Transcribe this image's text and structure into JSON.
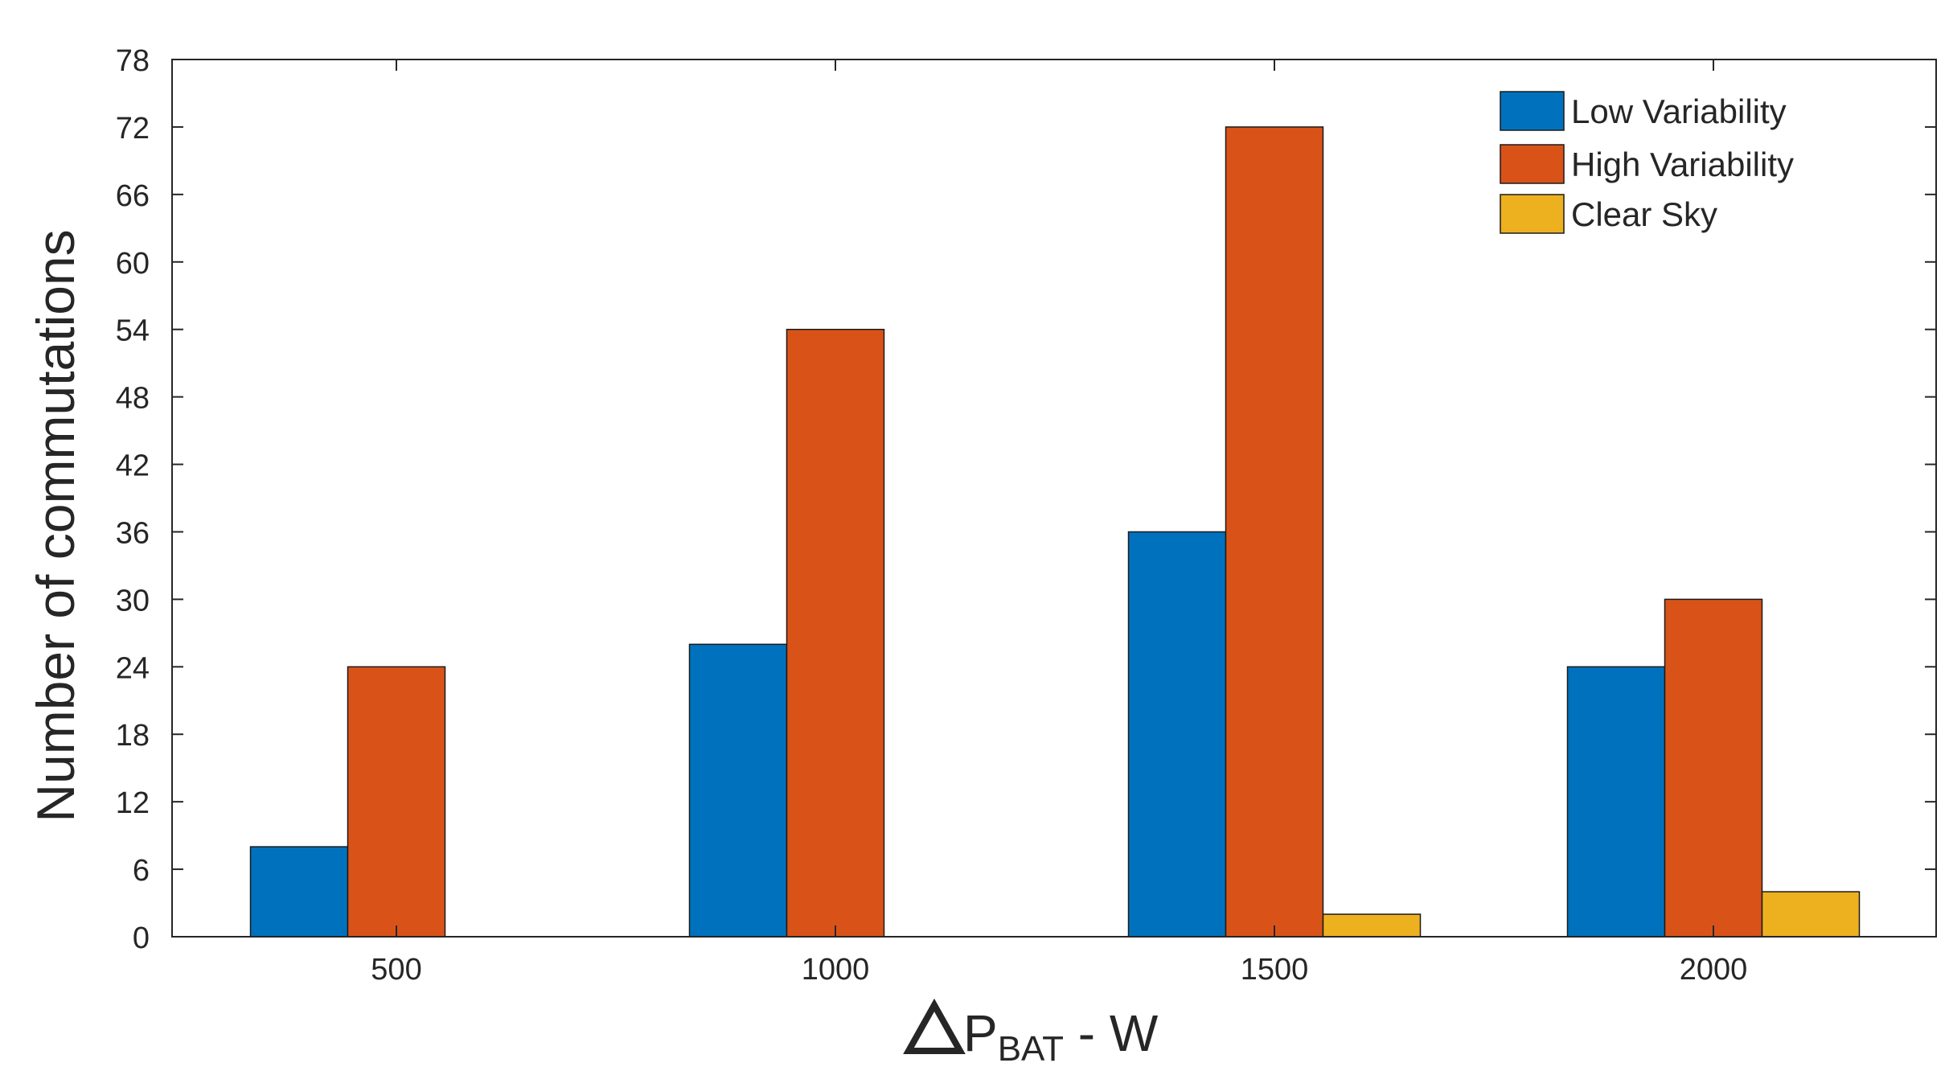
{
  "chart_data": {
    "type": "bar",
    "categories": [
      "500",
      "1000",
      "1500",
      "2000"
    ],
    "series": [
      {
        "name": "Low Variability",
        "values": [
          8,
          26,
          36,
          24
        ],
        "color": "#0072BD"
      },
      {
        "name": "High Variability",
        "values": [
          24,
          54,
          72,
          30
        ],
        "color": "#D95319"
      },
      {
        "name": "Clear Sky",
        "values": [
          0,
          0,
          2,
          4
        ],
        "color": "#EDB120"
      }
    ],
    "ylabel": "Number of commutations",
    "xlabel": {
      "prefix": "P",
      "subscript": "BAT",
      "suffix": " - W"
    },
    "ylim": [
      0,
      78
    ],
    "yticks": [
      "0",
      "6",
      "12",
      "18",
      "24",
      "30",
      "36",
      "42",
      "48",
      "54",
      "60",
      "66",
      "72",
      "78"
    ],
    "grid": false,
    "legend_position": "top-right"
  }
}
